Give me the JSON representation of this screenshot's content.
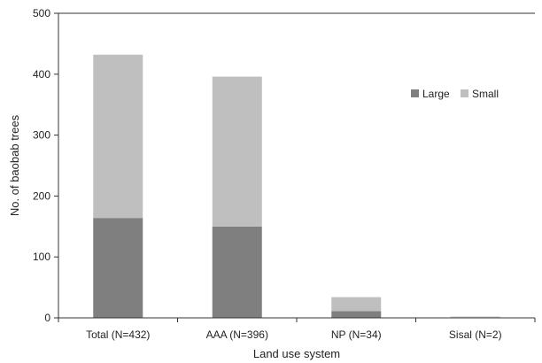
{
  "chart_data": {
    "type": "bar",
    "stacked": true,
    "title": "",
    "xlabel": "Land use system",
    "ylabel": "No. of baobab trees",
    "ylim": [
      0,
      500
    ],
    "yticks": [
      0,
      100,
      200,
      300,
      400,
      500
    ],
    "yticklabels": [
      "0",
      "100",
      "200",
      "300",
      "400",
      "500"
    ],
    "grid": false,
    "legend_position": "top-right",
    "categories": [
      "Total (N=432)",
      "AAA (N=396)",
      "NP (N=34)",
      "Sisal (N=2)"
    ],
    "series": [
      {
        "name": "Large",
        "color": "#7f7f7f",
        "values": [
          164,
          150,
          11,
          1
        ]
      },
      {
        "name": "Small",
        "color": "#bfbfbf",
        "values": [
          268,
          246,
          23,
          1
        ]
      }
    ]
  }
}
